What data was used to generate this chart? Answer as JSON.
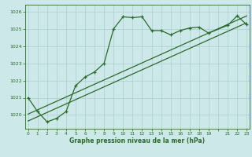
{
  "x": [
    0,
    1,
    2,
    3,
    4,
    5,
    6,
    7,
    8,
    9,
    10,
    11,
    12,
    13,
    14,
    15,
    16,
    17,
    18,
    19,
    21,
    22,
    23
  ],
  "y_main": [
    1021.0,
    1020.2,
    1019.6,
    1019.8,
    1020.2,
    1021.7,
    1022.2,
    1022.5,
    1023.0,
    1025.0,
    1025.7,
    1025.65,
    1025.7,
    1024.9,
    1024.9,
    1024.65,
    1024.9,
    1025.05,
    1025.1,
    1024.75,
    1025.2,
    1025.75,
    1025.25
  ],
  "line1_x": [
    0,
    23
  ],
  "line1_y": [
    1020.05,
    1025.75
  ],
  "line2_x": [
    0,
    23
  ],
  "line2_y": [
    1019.65,
    1025.35
  ],
  "line_color": "#2d6a2d",
  "bg_color": "#cce8e8",
  "grid_color": "#aacfcf",
  "xlabel": "Graphe pression niveau de la mer (hPa)",
  "xtick_labels": [
    "0",
    "1",
    "2",
    "3",
    "4",
    "5",
    "6",
    "7",
    "8",
    "9",
    "10",
    "11",
    "12",
    "13",
    "14",
    "15",
    "16",
    "17",
    "18",
    "19",
    "",
    "21",
    "22",
    "23"
  ],
  "xtick_positions": [
    0,
    1,
    2,
    3,
    4,
    5,
    6,
    7,
    8,
    9,
    10,
    11,
    12,
    13,
    14,
    15,
    16,
    17,
    18,
    19,
    20,
    21,
    22,
    23
  ],
  "yticks": [
    1020,
    1021,
    1022,
    1023,
    1024,
    1025,
    1026
  ],
  "ylim": [
    1019.2,
    1026.4
  ],
  "xlim": [
    -0.3,
    23.3
  ]
}
